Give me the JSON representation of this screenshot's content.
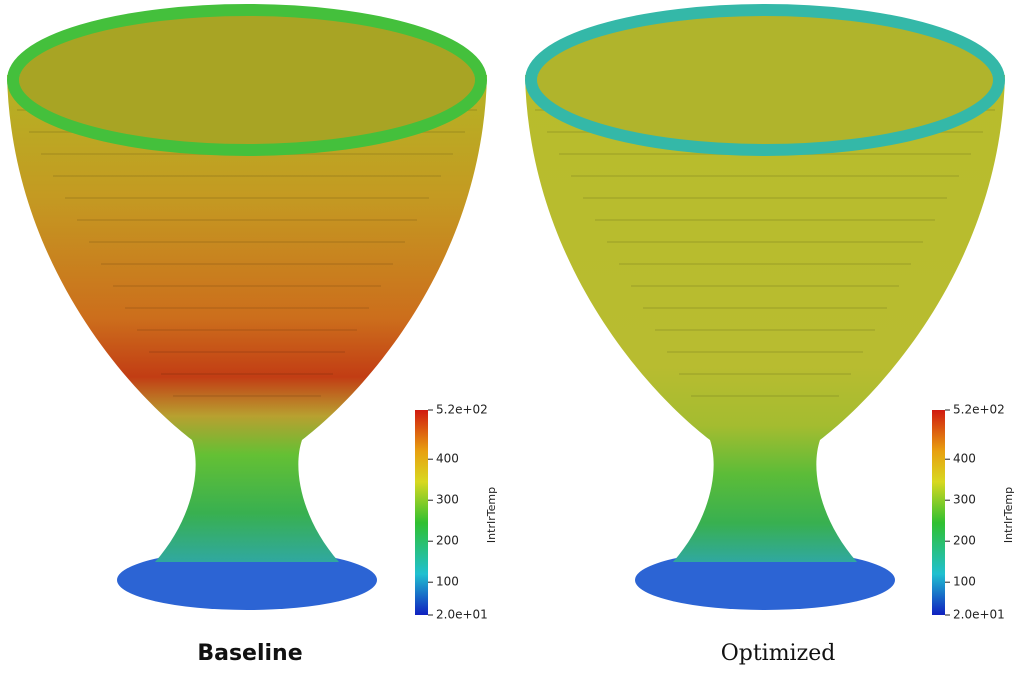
{
  "panels": [
    {
      "caption": "Baseline",
      "colorbar": {
        "title": "IntrIrTemp",
        "ticks": [
          {
            "value": 520,
            "label": "5.2e+02"
          },
          400,
          300,
          200,
          100,
          {
            "value": 20,
            "label": "2.0e+01"
          }
        ]
      }
    },
    {
      "caption": "Optimized",
      "colorbar": {
        "title": "IntrIrTemp",
        "ticks": [
          {
            "value": 520,
            "label": "5.2e+02"
          },
          400,
          300,
          200,
          100,
          {
            "value": 20,
            "label": "2.0e+01"
          }
        ]
      }
    }
  ]
}
